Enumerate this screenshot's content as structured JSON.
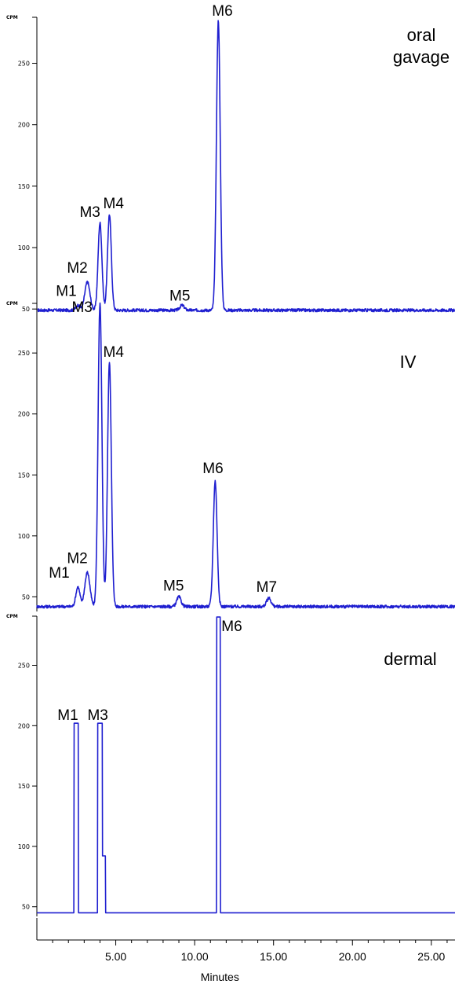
{
  "chart_data": [
    {
      "type": "line",
      "label": "oral\ngavage",
      "ylabel": "CPM",
      "yticks": [
        50,
        100,
        150,
        200,
        250
      ],
      "ylim": [
        45,
        290
      ],
      "baseline": 49,
      "peaks": [
        {
          "name": "M1",
          "x": 2.6,
          "y": 53
        },
        {
          "name": "M2",
          "x": 3.2,
          "y": 72
        },
        {
          "name": "M3",
          "x": 4.0,
          "y": 120
        },
        {
          "name": "M4",
          "x": 4.6,
          "y": 127
        },
        {
          "name": "M5",
          "x": 9.2,
          "y": 53
        },
        {
          "name": "M6",
          "x": 11.5,
          "y": 285
        }
      ]
    },
    {
      "type": "line",
      "label": "IV",
      "ylabel": "CPM",
      "yticks": [
        50,
        100,
        150,
        200,
        250
      ],
      "ylim": [
        38,
        292
      ],
      "baseline": 42,
      "peaks": [
        {
          "name": "M1",
          "x": 2.6,
          "y": 58
        },
        {
          "name": "M2",
          "x": 3.2,
          "y": 70
        },
        {
          "name": "M3",
          "x": 4.0,
          "y": 290
        },
        {
          "name": "M4",
          "x": 4.6,
          "y": 243
        },
        {
          "name": "M5",
          "x": 9.0,
          "y": 50
        },
        {
          "name": "M6",
          "x": 11.3,
          "y": 145
        },
        {
          "name": "M7",
          "x": 14.7,
          "y": 49
        }
      ]
    },
    {
      "type": "line",
      "label": "dermal",
      "ylabel": "CPM",
      "yticks": [
        50,
        100,
        150,
        200,
        250
      ],
      "ylim": [
        42,
        292
      ],
      "baseline": 45,
      "peaks": [
        {
          "name": "M1",
          "x": 2.5,
          "y": 202
        },
        {
          "name": "M3",
          "x": 4.0,
          "y": 202
        },
        {
          "name": "M6",
          "x": 11.5,
          "y": 290
        }
      ]
    }
  ],
  "x_axis": {
    "xlabel": "Minutes",
    "xlim": [
      0,
      26.5
    ],
    "ticks": [
      {
        "value": 5,
        "label": "5.00"
      },
      {
        "value": 10,
        "label": "10.00"
      },
      {
        "value": 15,
        "label": "15.00"
      },
      {
        "value": 20,
        "label": "20.00"
      },
      {
        "value": 25,
        "label": "25.00"
      }
    ]
  },
  "colors": {
    "trace": "#1f1fd0"
  }
}
